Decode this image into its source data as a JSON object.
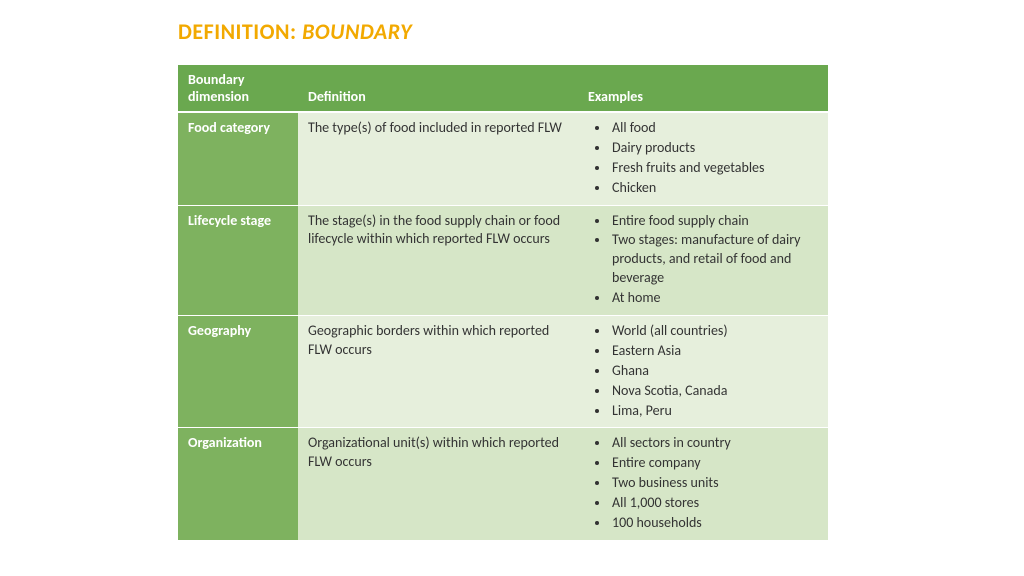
{
  "title": {
    "prefix": "DEFINITION: ",
    "word": "BOUNDARY"
  },
  "colors": {
    "title": "#f2a900",
    "header_bg": "#6aa84f",
    "header_fg": "#ffffff",
    "row_label_bg": "#7eb25f",
    "row_label_fg": "#ffffff",
    "body_fg": "#333333",
    "alt_row_a": "#e6efdc",
    "alt_row_b": "#d6e6c7"
  },
  "columns": [
    "Boundary dimension",
    "Definition",
    "Examples"
  ],
  "rows": [
    {
      "dimension": "Food category",
      "definition": "The type(s) of food included in reported FLW",
      "examples": [
        "All food",
        "Dairy products",
        "Fresh fruits and vegetables",
        "Chicken"
      ]
    },
    {
      "dimension": "Lifecycle stage",
      "definition": "The stage(s) in the food supply chain or food lifecycle within which reported FLW occurs",
      "examples": [
        "Entire food supply chain",
        "Two stages: manufacture of dairy products, and retail of food and beverage",
        "At home"
      ]
    },
    {
      "dimension": "Geography",
      "definition": "Geographic borders within which reported FLW occurs",
      "examples": [
        "World (all countries)",
        "Eastern Asia",
        "Ghana",
        "Nova Scotia, Canada",
        "Lima, Peru"
      ]
    },
    {
      "dimension": "Organization",
      "definition": "Organizational unit(s) within which reported FLW occurs",
      "examples": [
        "All sectors in country",
        "Entire company",
        "Two business units",
        "All 1,000 stores",
        "100 households"
      ]
    }
  ]
}
